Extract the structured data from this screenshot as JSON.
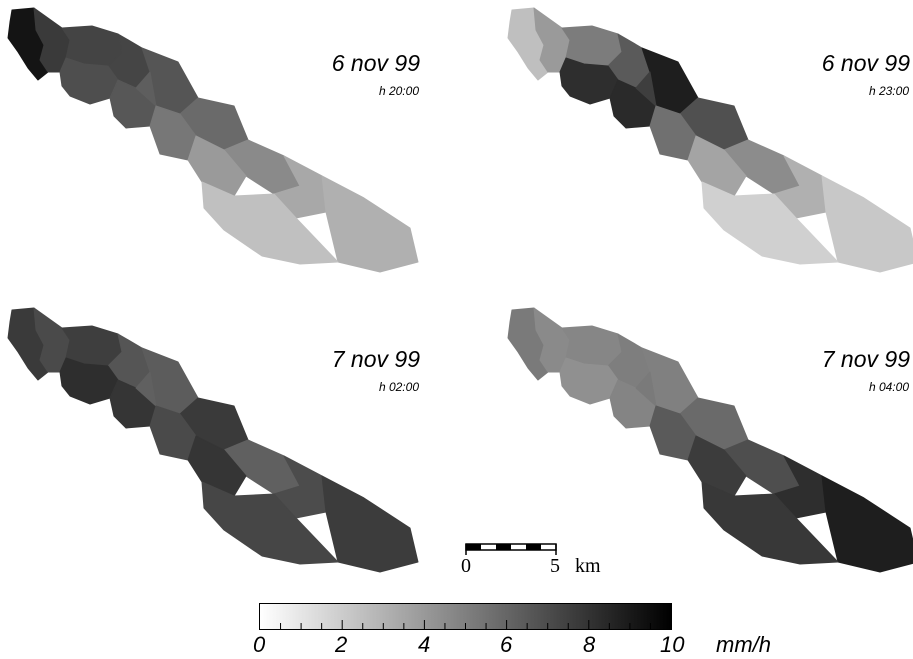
{
  "panels": [
    {
      "date": "6 nov 99",
      "time": "h 20:00",
      "fills": [
        "#141414",
        "#3a3a3a",
        "#444444",
        "#454545",
        "#4e4e4e",
        "#555555",
        "#575757",
        "#5e5e5e",
        "#6a6a6a",
        "#777777",
        "#8a8a8a",
        "#9a9a9a",
        "#a8a8a8",
        "#b0b0b0",
        "#c0c0c0"
      ]
    },
    {
      "date": "6 nov 99",
      "time": "h 23:00",
      "fills": [
        "#bfbfbf",
        "#9a9a9a",
        "#7c7c7c",
        "#5a5a5a",
        "#2e2e2e",
        "#1e1e1e",
        "#2a2a2a",
        "#3e3e3e",
        "#505050",
        "#707070",
        "#8c8c8c",
        "#a4a4a4",
        "#b0b0b0",
        "#c8c8c8",
        "#d0d0d0"
      ]
    },
    {
      "date": "7 nov 99",
      "time": "h 02:00",
      "fills": [
        "#3a3a3a",
        "#4a4a4a",
        "#3e3e3e",
        "#555555",
        "#2e2e2e",
        "#5c5c5c",
        "#353535",
        "#606060",
        "#3a3a3a",
        "#4a4a4a",
        "#606060",
        "#353535",
        "#4c4c4c",
        "#3c3c3c",
        "#464646"
      ]
    },
    {
      "date": "7 nov 99",
      "time": "h 04:00",
      "fills": [
        "#7a7a7a",
        "#8a8a8a",
        "#868686",
        "#7e7e7e",
        "#909090",
        "#808080",
        "#848484",
        "#7a7a7a",
        "#6a6a6a",
        "#5a5a5a",
        "#4e4e4e",
        "#3c3c3c",
        "#2e2e2e",
        "#1e1e1e",
        "#383838"
      ]
    }
  ],
  "scale_bar": {
    "start_label": "0",
    "end_label": "5",
    "unit": "km"
  },
  "legend": {
    "min": 0,
    "max": 10,
    "colors": [
      "#ffffff",
      "#000000"
    ],
    "tick_labels": [
      "0",
      "2",
      "4",
      "6",
      "8",
      "10"
    ],
    "unit": "mm/h"
  }
}
